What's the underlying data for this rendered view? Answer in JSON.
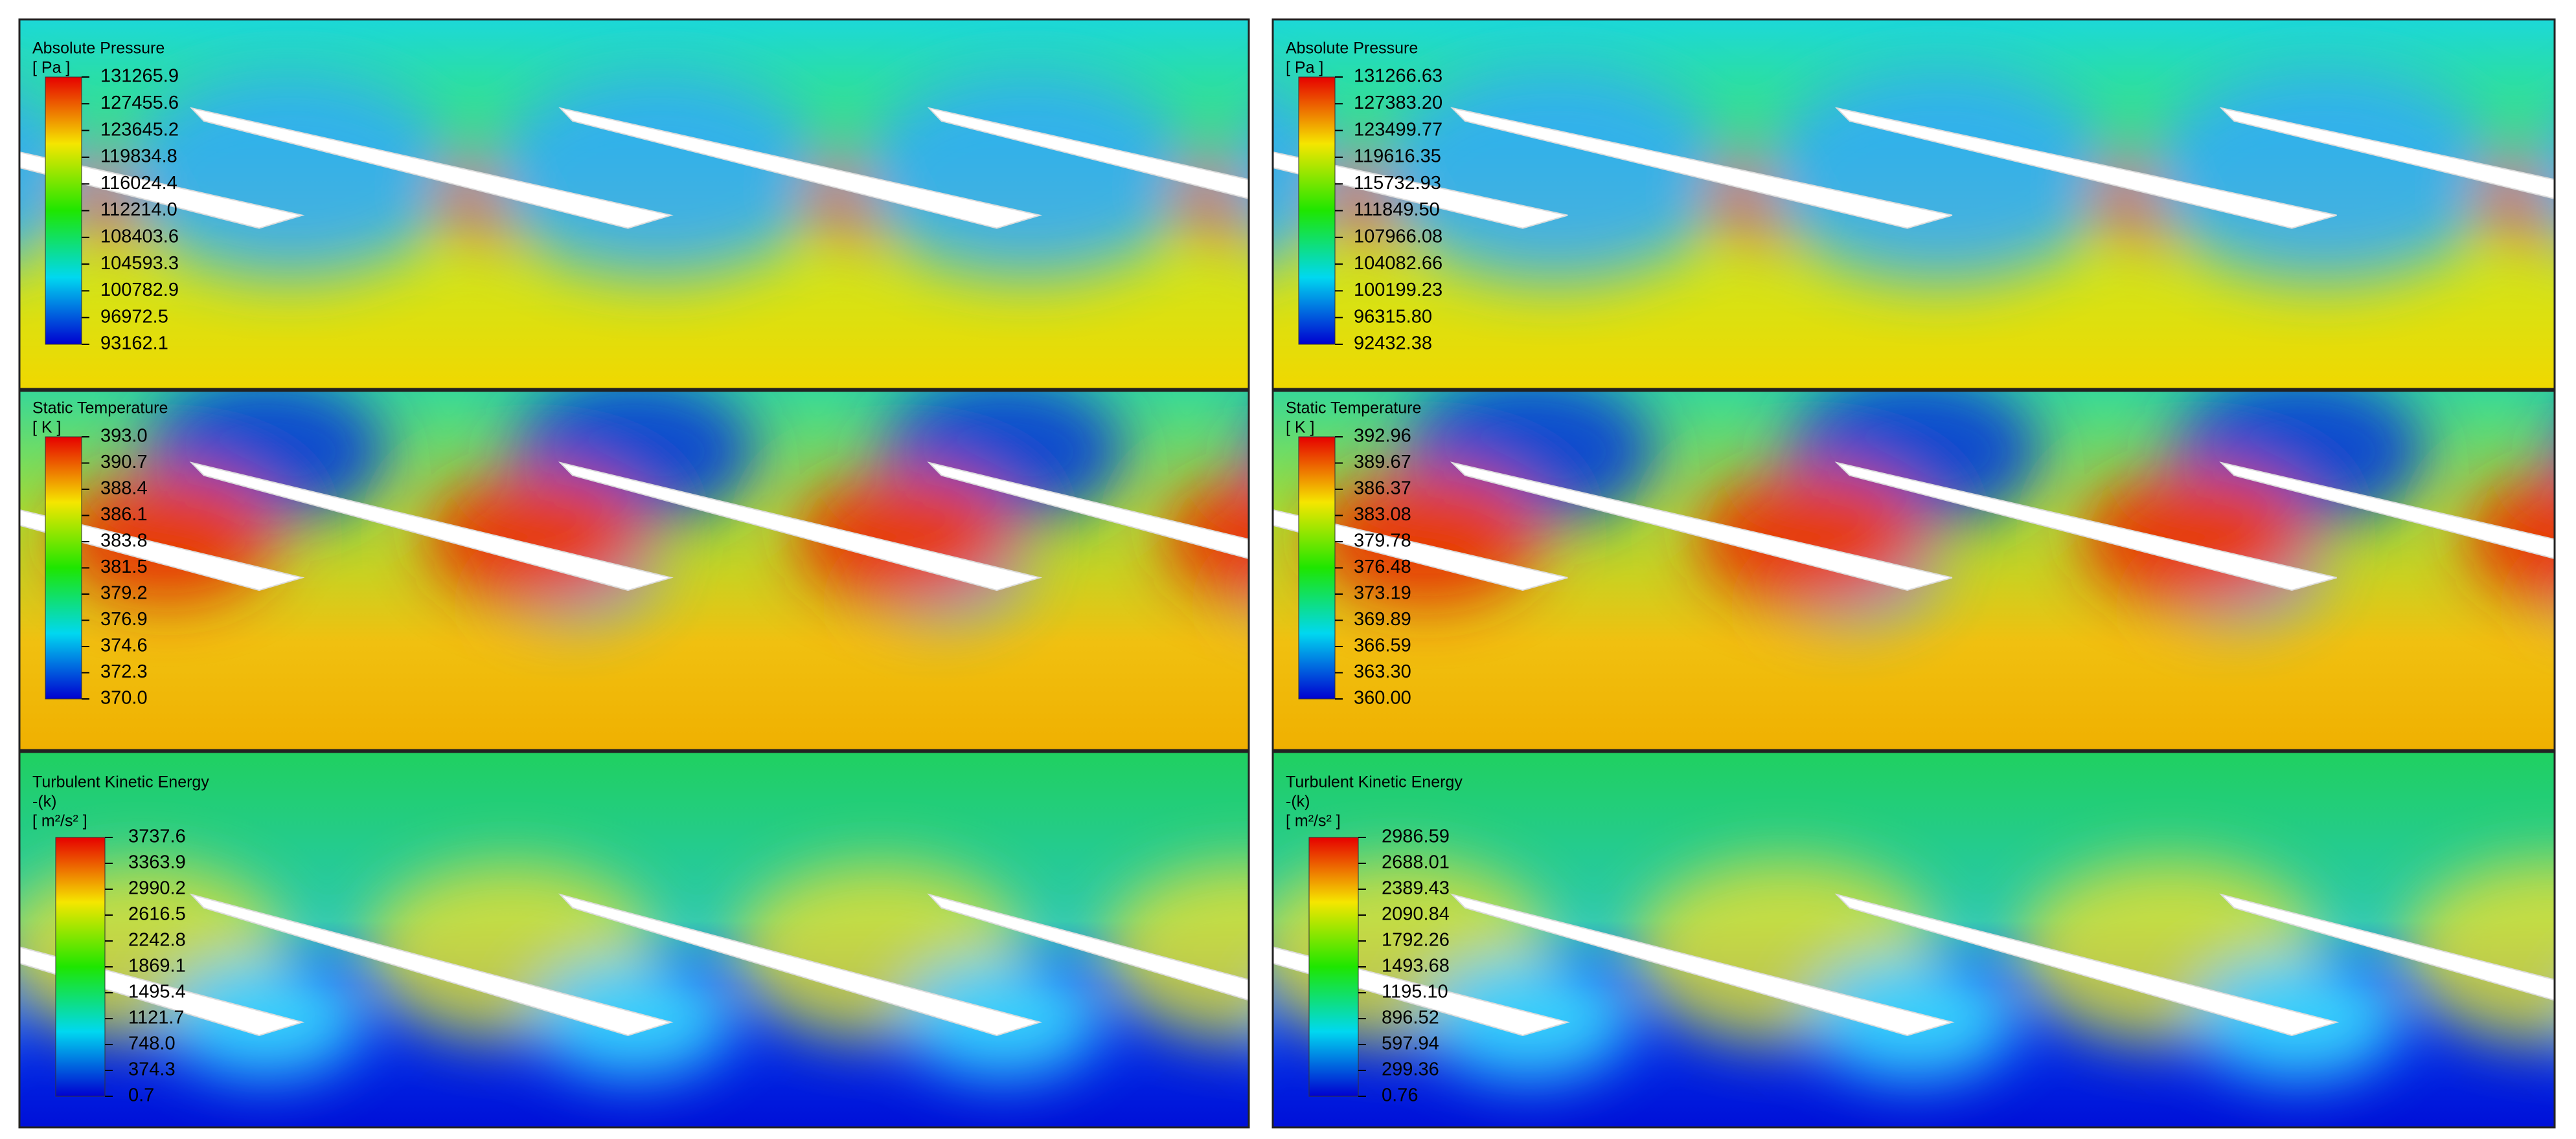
{
  "panels": [
    {
      "title": "Absolute Pressure",
      "unit": "[ Pa ]",
      "ticks": [
        "131265.9",
        "127455.6",
        "123645.2",
        "119834.8",
        "116024.4",
        "112214.0",
        "108403.6",
        "104593.3",
        "100782.9",
        "96972.5",
        "93162.1"
      ]
    },
    {
      "title": "Absolute Pressure",
      "unit": "[ Pa ]",
      "ticks": [
        "131266.63",
        "127383.20",
        "123499.77",
        "119616.35",
        "115732.93",
        "111849.50",
        "107966.08",
        "104082.66",
        "100199.23",
        "96315.80",
        "92432.38"
      ]
    },
    {
      "title": "Static Temperature",
      "unit": "[ K ]",
      "ticks": [
        "393.0",
        "390.7",
        "388.4",
        "386.1",
        "383.8",
        "381.5",
        "379.2",
        "376.9",
        "374.6",
        "372.3",
        "370.0"
      ]
    },
    {
      "title": "Static Temperature",
      "unit": "[ K ]",
      "ticks": [
        "392.96",
        "389.67",
        "386.37",
        "383.08",
        "379.78",
        "376.48",
        "373.19",
        "369.89",
        "366.59",
        "363.30",
        "360.00"
      ]
    },
    {
      "title": "Turbulent Kinetic Energy",
      "subtitle": "-(k)",
      "unit": "[ m²/s² ]",
      "ticks": [
        "3737.6",
        "3363.9",
        "2990.2",
        "2616.5",
        "2242.8",
        "1869.1",
        "1495.4",
        "1121.7",
        "748.0",
        "374.3",
        "0.7"
      ]
    },
    {
      "title": "Turbulent Kinetic Energy",
      "subtitle": "-(k)",
      "unit": "[ m²/s² ]",
      "ticks": [
        "2986.59",
        "2688.01",
        "2389.43",
        "2090.84",
        "1792.26",
        "1493.68",
        "1195.10",
        "896.52",
        "597.94",
        "299.36",
        "0.76"
      ]
    }
  ]
}
